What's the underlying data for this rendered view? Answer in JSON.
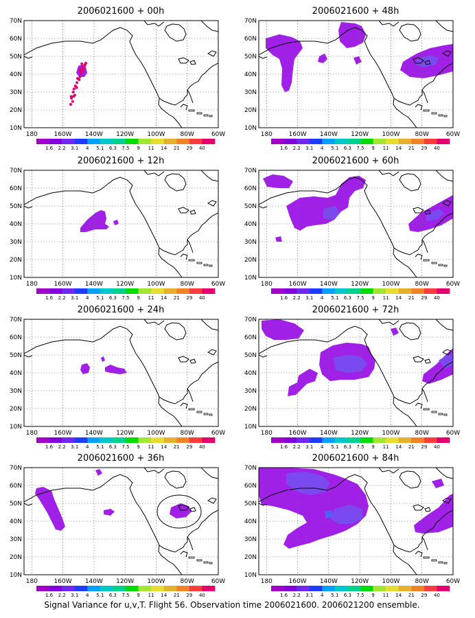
{
  "caption": "Signal Variance for u,v,T. Flight 56. Observation time 2006021600. 2006021200 ensemble.",
  "axes": {
    "lat_labels": [
      "70N",
      "60N",
      "50N",
      "40N",
      "30N",
      "20N",
      "10N"
    ],
    "lon_labels": [
      "180",
      "160W",
      "140W",
      "120W",
      "100W",
      "80W",
      "60W"
    ],
    "lat_range": [
      10,
      70
    ],
    "lon_range": [
      -185,
      -60
    ]
  },
  "colorbar": {
    "labels": [
      "1.6",
      "2.2",
      "3.1",
      "4",
      "5.1",
      "6.3",
      "7.5",
      "9",
      "11",
      "14",
      "21",
      "29",
      "40"
    ],
    "colors": [
      "#a000c8",
      "#8200dc",
      "#6e28f0",
      "#1e3cff",
      "#00a0ff",
      "#00c8c8",
      "#00d28c",
      "#00dc00",
      "#a0e632",
      "#e6dc32",
      "#e6af2d",
      "#f08228",
      "#fa3c3c",
      "#e6006e"
    ]
  },
  "colors": {
    "fill_low": "#a020e8",
    "fill_mid": "#7a4af0",
    "fill_high": "#5060f8",
    "obs_points": "#e0006e",
    "coast": "#000000"
  },
  "panels": [
    {
      "title": "2006021600 + 00h"
    },
    {
      "title": "2006021600 + 48h"
    },
    {
      "title": "2006021600 + 12h"
    },
    {
      "title": "2006021600 + 60h"
    },
    {
      "title": "2006021600 + 24h"
    },
    {
      "title": "2006021600 + 72h"
    },
    {
      "title": "2006021600 + 36h"
    },
    {
      "title": "2006021600 + 84h"
    }
  ]
}
